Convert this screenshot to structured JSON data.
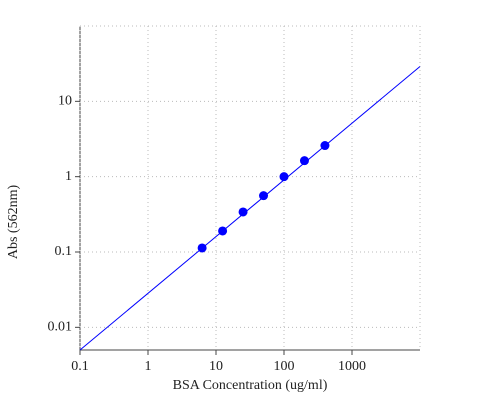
{
  "chart_data": {
    "type": "scatter",
    "x_label": "BSA Concentration (ug/ml)",
    "y_label": "Abs (562nm)",
    "x": [
      6.25,
      12.5,
      25,
      50,
      100,
      200,
      400
    ],
    "values": [
      0.113,
      0.19,
      0.34,
      0.56,
      1.0,
      1.63,
      2.59
    ],
    "color": "#0000ff",
    "fit": {
      "x": [
        0.1,
        10000
      ],
      "values": [
        0.005,
        29
      ],
      "color": "#0000ff"
    },
    "xscale": "log",
    "yscale": "log",
    "xlim": [
      0.1,
      10000
    ],
    "ylim": [
      0.005,
      100
    ],
    "xticks": [
      0.1,
      1,
      10,
      100,
      1000
    ],
    "yticks": [
      0.01,
      0.1,
      1,
      10
    ],
    "grid": true
  }
}
